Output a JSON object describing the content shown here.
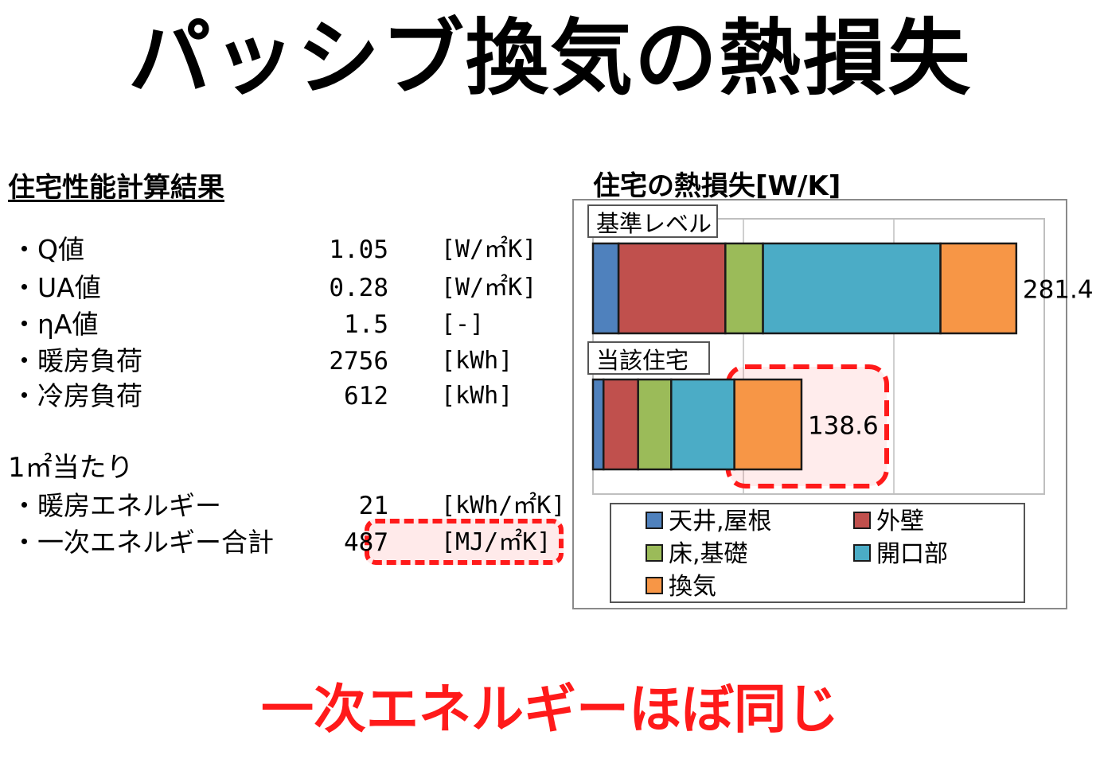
{
  "page": {
    "title": "パッシブ換気の熱損失",
    "bottom_text": "一次エネルギーほぼ同じ"
  },
  "left": {
    "heading": "住宅性能計算結果",
    "metrics": [
      {
        "name": "・Q値",
        "value": "1.05",
        "unit": "[W/㎡K]"
      },
      {
        "name": "・UA値",
        "value": "0.28",
        "unit": "[W/㎡K]"
      },
      {
        "name": "・ηA値",
        "value": "1.5",
        "unit": "[-]"
      },
      {
        "name": "・暖房負荷",
        "value": "2756",
        "unit": "[kWh]"
      },
      {
        "name": "・冷房負荷",
        "value": "612",
        "unit": "[kWh]"
      }
    ],
    "per_area_heading": "1㎡当たり",
    "per_area": [
      {
        "name": "・暖房エネルギー",
        "value": "21",
        "unit": "[kWh/㎡K]"
      },
      {
        "name": "・一次エネルギー合計",
        "value": "487",
        "unit": "[MJ/㎡K]"
      }
    ]
  },
  "chart_data": {
    "type": "bar",
    "orientation": "horizontal",
    "stacked": true,
    "title": "住宅の熱損失[W/K]",
    "categories": [
      "基準レベル",
      "当該住宅"
    ],
    "totals": [
      "281.4",
      "138.6"
    ],
    "xlim": [
      0,
      300
    ],
    "gridlines": [
      100,
      200
    ],
    "series": [
      {
        "name": "天井,屋根",
        "color": "#4f81bd",
        "values": [
          17,
          7
        ]
      },
      {
        "name": "外壁",
        "color": "#c0504d",
        "values": [
          71,
          23
        ]
      },
      {
        "name": "床,基礎",
        "color": "#9bbb59",
        "values": [
          25,
          22
        ]
      },
      {
        "name": "開口部",
        "color": "#4bacc6",
        "values": [
          118,
          42
        ]
      },
      {
        "name": "換気",
        "color": "#f79646",
        "values": [
          50.4,
          44.6
        ]
      }
    ],
    "legend_position": "bottom",
    "highlight": "当該住宅 換気"
  }
}
